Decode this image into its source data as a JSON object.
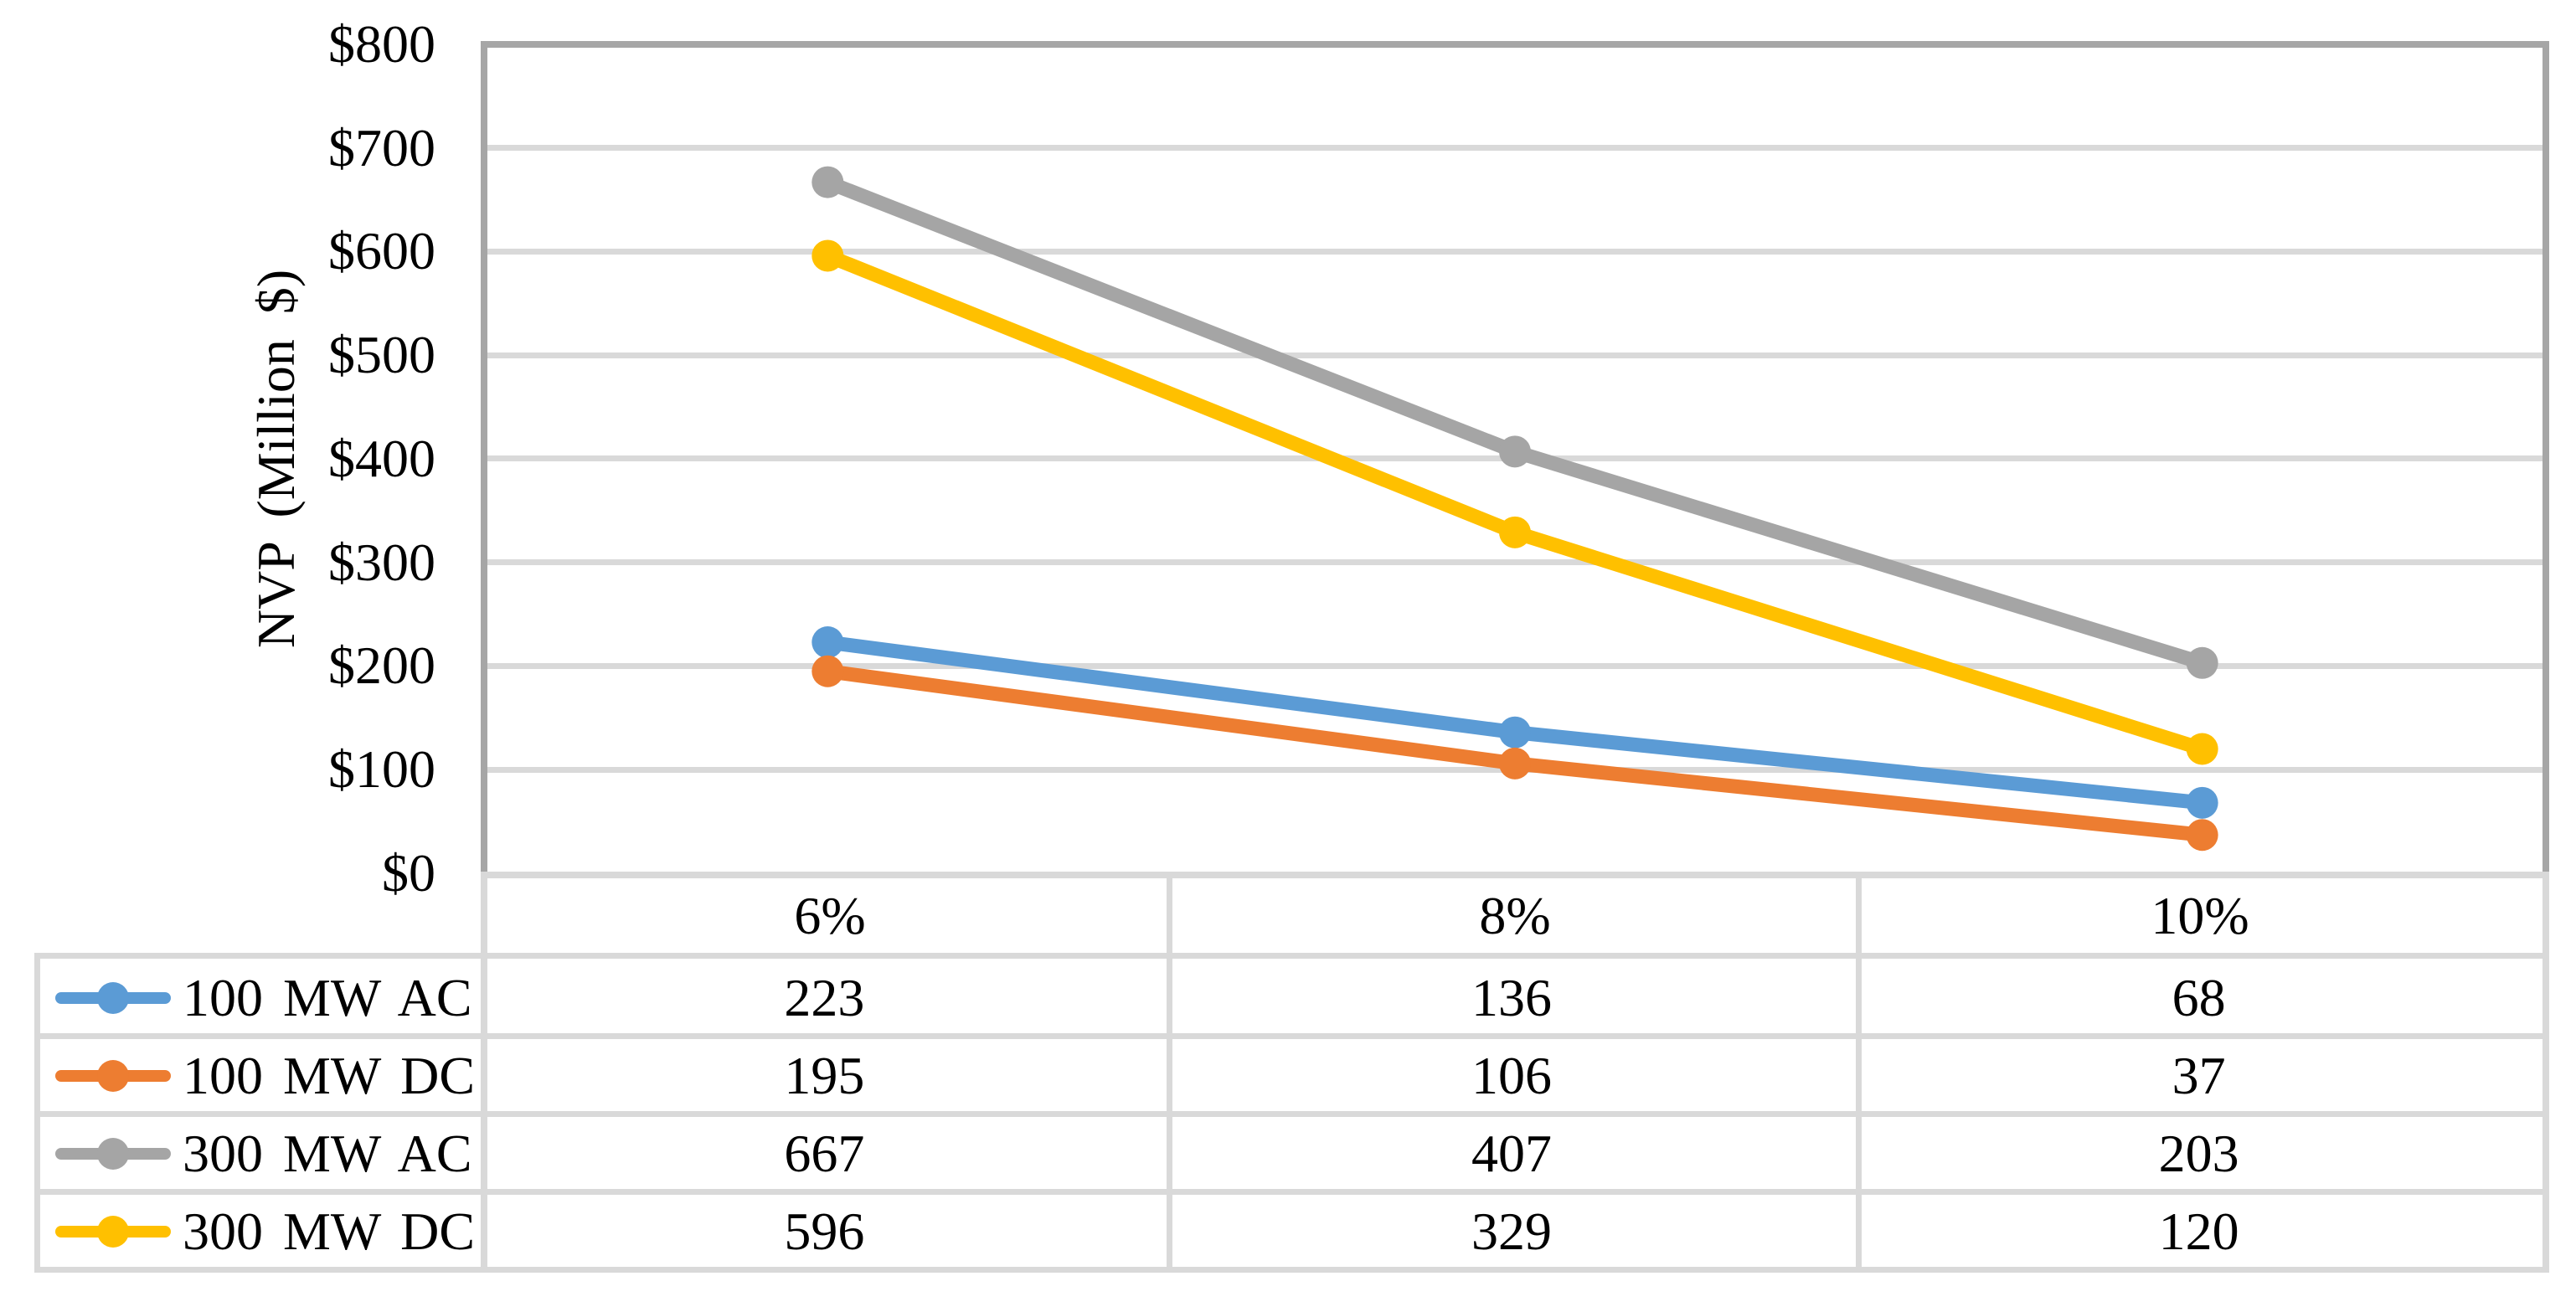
{
  "chart_data": {
    "type": "line",
    "categories": [
      "6%",
      "8%",
      "10%"
    ],
    "series": [
      {
        "name": "100 MW AC",
        "color": "#5B9BD5",
        "values": [
          223,
          136,
          68
        ]
      },
      {
        "name": "100 MW DC",
        "color": "#ED7D31",
        "values": [
          195,
          106,
          37
        ]
      },
      {
        "name": "300 MW AC",
        "color": "#A5A5A5",
        "values": [
          667,
          407,
          203
        ]
      },
      {
        "name": "300 MW DC",
        "color": "#FFC000",
        "values": [
          596,
          329,
          120
        ]
      }
    ],
    "title": "",
    "xlabel": "",
    "ylabel": "NVP (Million $)",
    "ylim": [
      0,
      800
    ],
    "ytick_interval": 100,
    "ytick_labels": [
      "$800",
      "$700",
      "$600",
      "$500",
      "$400",
      "$300",
      "$200",
      "$100",
      "$0"
    ],
    "grid": true,
    "marker": "circle",
    "legend_position": "data-table-left-column",
    "data_table_shown": true,
    "colors": {
      "gridline": "#D9D9D9",
      "plot_border": "#A6A6A6",
      "table_border": "#D9D9D9",
      "background": "#FFFFFF",
      "text": "#000000"
    }
  }
}
